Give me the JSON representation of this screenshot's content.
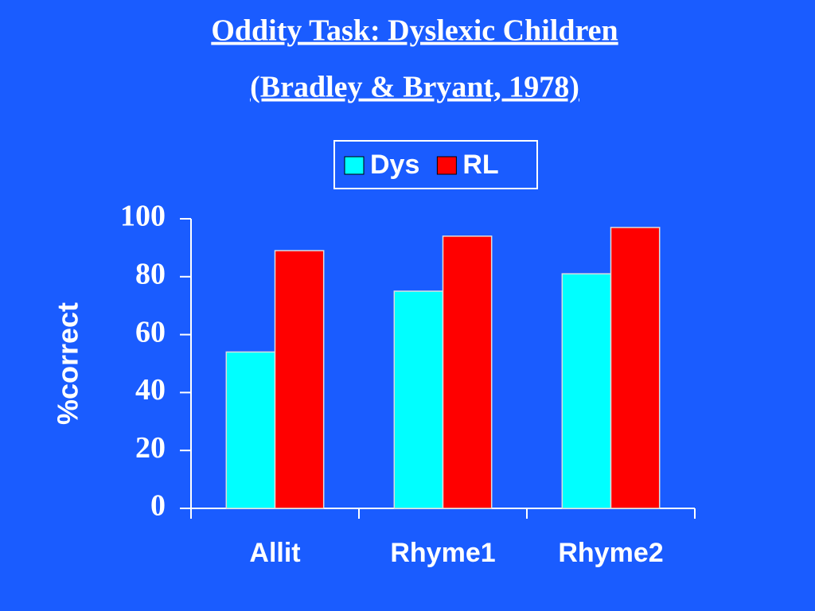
{
  "chart_data": {
    "type": "bar",
    "title": "Oddity Task: Dyslexic Children",
    "subtitle": "(Bradley & Bryant, 1978)",
    "y_label": "%correct",
    "categories": [
      "Allit",
      "Rhyme1",
      "Rhyme2"
    ],
    "series": [
      {
        "name": "Dys",
        "color": "#00ffff",
        "values": [
          54,
          75,
          81
        ]
      },
      {
        "name": "RL",
        "color": "#ff0000",
        "values": [
          89,
          94,
          97
        ]
      }
    ],
    "ylim": [
      0,
      100
    ],
    "yticks": [
      0,
      20,
      40,
      60,
      80,
      100
    ],
    "grid": false,
    "legend": "top"
  }
}
